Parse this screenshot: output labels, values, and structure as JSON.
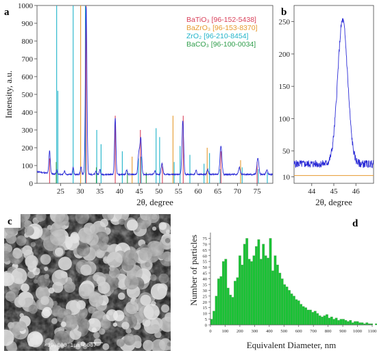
{
  "panels": {
    "a": "a",
    "b": "b",
    "c": "c",
    "d": "d"
  },
  "sem": {
    "label": "×30,000   1μm  0007"
  },
  "colors": {
    "batio3": "#d9415a",
    "bazro3": "#e69a2e",
    "zro2": "#1fb3c9",
    "baco3": "#2e9d4a",
    "xrd": "#2b2bd6",
    "hist_fill": "#19c235",
    "hist_stroke": "#6aa86a"
  },
  "chart_data": [
    {
      "id": "xrd-full",
      "type": "line",
      "xlabel": "2θ, degree",
      "ylabel": "Intensity, a.u.",
      "xlim": [
        19,
        79
      ],
      "ylim": [
        0,
        1000
      ],
      "xticks": [
        25,
        30,
        35,
        40,
        45,
        50,
        55,
        60,
        65,
        70,
        75
      ],
      "yticks": [
        0,
        100,
        200,
        300,
        400,
        500,
        600,
        700,
        800,
        900,
        1000
      ],
      "legend_position": "top-right",
      "legend": [
        {
          "label": "BaTiO₃ [96-152-5438]",
          "color_key": "batio3"
        },
        {
          "label": "BaZrO₃ [96-153-8370]",
          "color_key": "bazro3"
        },
        {
          "label": "ZrO₂ [96-210-8454]",
          "color_key": "zro2"
        },
        {
          "label": "BaCO₃ [96-100-0034]",
          "color_key": "baco3"
        }
      ],
      "baseline": 50,
      "peaks": [
        {
          "x": 22.2,
          "h": 130,
          "w": 0.25
        },
        {
          "x": 24.0,
          "h": 25,
          "w": 0.2
        },
        {
          "x": 26.0,
          "h": 20,
          "w": 0.2
        },
        {
          "x": 28.2,
          "h": 40,
          "w": 0.2
        },
        {
          "x": 30.2,
          "h": 40,
          "w": 0.25
        },
        {
          "x": 31.5,
          "h": 950,
          "w": 0.28
        },
        {
          "x": 34.0,
          "h": 20,
          "w": 0.2
        },
        {
          "x": 35.0,
          "h": 30,
          "w": 0.2
        },
        {
          "x": 38.9,
          "h": 320,
          "w": 0.25
        },
        {
          "x": 41.8,
          "h": 25,
          "w": 0.2
        },
        {
          "x": 44.9,
          "h": 120,
          "w": 0.3
        },
        {
          "x": 45.4,
          "h": 200,
          "w": 0.3
        },
        {
          "x": 49.0,
          "h": 20,
          "w": 0.2
        },
        {
          "x": 50.8,
          "h": 60,
          "w": 0.3
        },
        {
          "x": 56.1,
          "h": 300,
          "w": 0.3
        },
        {
          "x": 59.5,
          "h": 25,
          "w": 0.2
        },
        {
          "x": 62.4,
          "h": 30,
          "w": 0.25
        },
        {
          "x": 65.8,
          "h": 160,
          "w": 0.35
        },
        {
          "x": 70.5,
          "h": 40,
          "w": 0.3
        },
        {
          "x": 75.2,
          "h": 90,
          "w": 0.35
        },
        {
          "x": 77.5,
          "h": 25,
          "w": 0.3
        }
      ],
      "reference_lines": [
        {
          "series": "zro2",
          "x": 24.0,
          "y": 1000
        },
        {
          "series": "zro2",
          "x": 24.3,
          "y": 520
        },
        {
          "series": "zro2",
          "x": 28.2,
          "y": 1000
        },
        {
          "series": "zro2",
          "x": 31.3,
          "y": 1000
        },
        {
          "series": "zro2",
          "x": 34.2,
          "y": 300
        },
        {
          "series": "zro2",
          "x": 35.3,
          "y": 220
        },
        {
          "series": "zro2",
          "x": 40.7,
          "y": 180
        },
        {
          "series": "zro2",
          "x": 44.8,
          "y": 140
        },
        {
          "series": "zro2",
          "x": 45.5,
          "y": 150
        },
        {
          "series": "zro2",
          "x": 49.3,
          "y": 310
        },
        {
          "series": "zro2",
          "x": 50.2,
          "y": 260
        },
        {
          "series": "zro2",
          "x": 53.9,
          "y": 120
        },
        {
          "series": "zro2",
          "x": 55.4,
          "y": 210
        },
        {
          "series": "zro2",
          "x": 57.9,
          "y": 160
        },
        {
          "series": "zro2",
          "x": 61.5,
          "y": 110
        },
        {
          "series": "zro2",
          "x": 62.9,
          "y": 170
        },
        {
          "series": "zro2",
          "x": 65.6,
          "y": 80
        },
        {
          "series": "zro2",
          "x": 71.2,
          "y": 90
        },
        {
          "series": "zro2",
          "x": 75.3,
          "y": 80
        },
        {
          "series": "zro2",
          "x": 77.6,
          "y": 60
        },
        {
          "series": "bazro3",
          "x": 30.1,
          "y": 1000
        },
        {
          "series": "bazro3",
          "x": 43.2,
          "y": 150
        },
        {
          "series": "bazro3",
          "x": 53.6,
          "y": 380
        },
        {
          "series": "bazro3",
          "x": 62.3,
          "y": 200
        },
        {
          "series": "bazro3",
          "x": 70.8,
          "y": 130
        },
        {
          "series": "batio3",
          "x": 22.2,
          "y": 140
        },
        {
          "series": "batio3",
          "x": 31.5,
          "y": 1000
        },
        {
          "series": "batio3",
          "x": 38.9,
          "y": 380
        },
        {
          "series": "batio3",
          "x": 45.3,
          "y": 300
        },
        {
          "series": "batio3",
          "x": 50.9,
          "y": 110
        },
        {
          "series": "batio3",
          "x": 56.2,
          "y": 380
        },
        {
          "series": "batio3",
          "x": 65.8,
          "y": 180
        },
        {
          "series": "batio3",
          "x": 75.0,
          "y": 120
        },
        {
          "series": "baco3",
          "x": 23.9,
          "y": 120
        },
        {
          "series": "baco3",
          "x": 34.1,
          "y": 90
        },
        {
          "series": "baco3",
          "x": 42.0,
          "y": 70
        },
        {
          "series": "baco3",
          "x": 46.8,
          "y": 60
        }
      ]
    },
    {
      "id": "xrd-zoom",
      "type": "line",
      "xlabel": "2θ, degree",
      "xlim": [
        43.2,
        46.8
      ],
      "ylim": [
        0,
        275
      ],
      "xticks": [
        44,
        45,
        46
      ],
      "yticks": [
        10,
        50,
        100,
        150,
        200,
        250
      ],
      "baseline": 30,
      "peak": {
        "x": 45.4,
        "h": 222,
        "w": 0.32
      },
      "reference_line_y": 12
    },
    {
      "id": "size-histogram",
      "type": "bar",
      "xlabel": "Equivalent Diameter, nm",
      "ylabel": "Number of particles",
      "xlim": [
        0,
        1100
      ],
      "ylim": [
        0,
        80
      ],
      "xticks": [
        0,
        100,
        200,
        300,
        400,
        500,
        600,
        700,
        800,
        900,
        1000,
        1100
      ],
      "yticks": [
        0,
        5,
        10,
        15,
        20,
        25,
        30,
        35,
        40,
        45,
        50,
        55,
        60,
        65,
        70,
        75
      ],
      "bin_width": 16,
      "bin_start": 0,
      "values": [
        5,
        12,
        25,
        40,
        42,
        55,
        57,
        32,
        26,
        24,
        38,
        41,
        60,
        52,
        70,
        75,
        57,
        55,
        60,
        68,
        74,
        57,
        70,
        60,
        58,
        75,
        47,
        60,
        52,
        45,
        40,
        35,
        33,
        30,
        27,
        25,
        22,
        21,
        18,
        16,
        15,
        13,
        13,
        11,
        12,
        10,
        8,
        7,
        8,
        9,
        6,
        7,
        5,
        6,
        4,
        5,
        5,
        4,
        3,
        4,
        2,
        3,
        3,
        2,
        2,
        1,
        2,
        1,
        1,
        0,
        1,
        1
      ]
    }
  ]
}
